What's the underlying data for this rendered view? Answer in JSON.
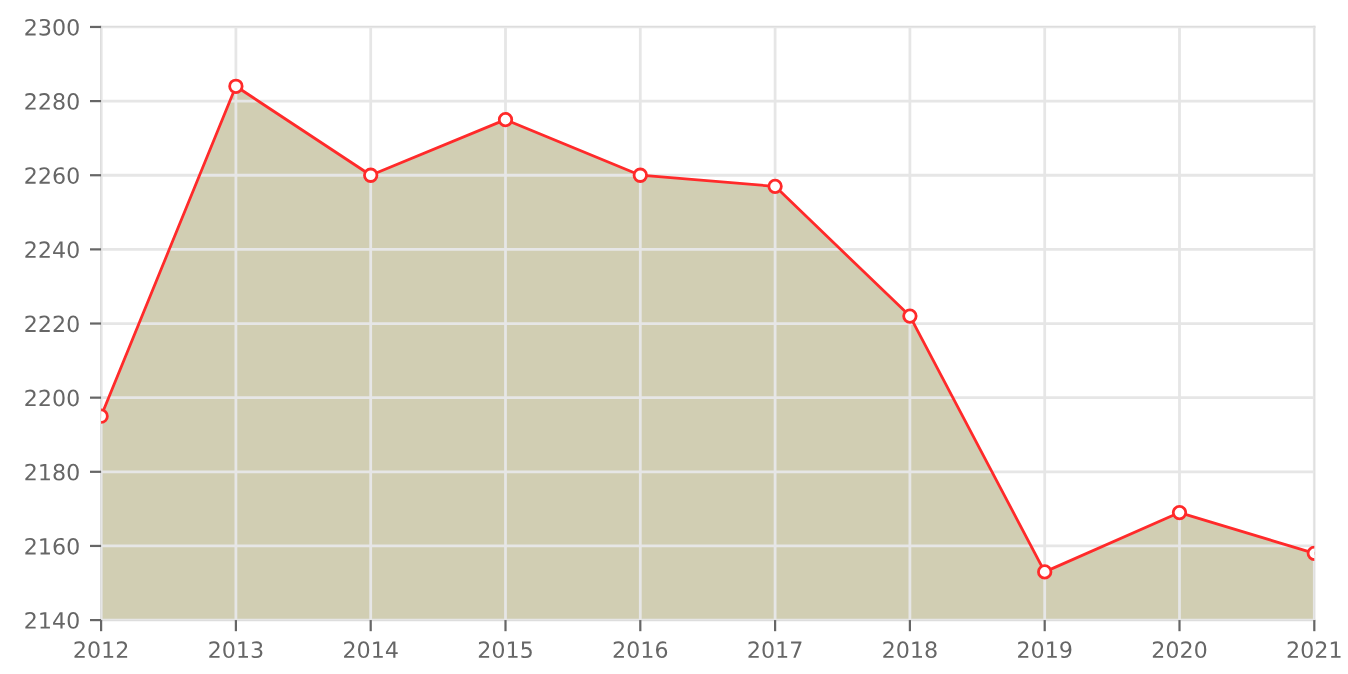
{
  "chart_data": {
    "type": "area",
    "x": [
      2012,
      2013,
      2014,
      2015,
      2016,
      2017,
      2018,
      2019,
      2020,
      2021
    ],
    "series": [
      {
        "color": "#ff2a2a",
        "values": [
          2195,
          2284,
          2260,
          2275,
          2260,
          2257,
          2222,
          2153,
          2169,
          2158
        ]
      }
    ],
    "xlim": [
      2012,
      2021
    ],
    "xticks": [
      2012,
      2013,
      2014,
      2015,
      2016,
      2017,
      2018,
      2019,
      2020,
      2021
    ],
    "ylim": [
      2140,
      2300
    ],
    "yticks": [
      2140,
      2160,
      2180,
      2200,
      2220,
      2240,
      2260,
      2280,
      2300
    ],
    "grid": true,
    "marker": "circle",
    "line_style": "solid"
  }
}
